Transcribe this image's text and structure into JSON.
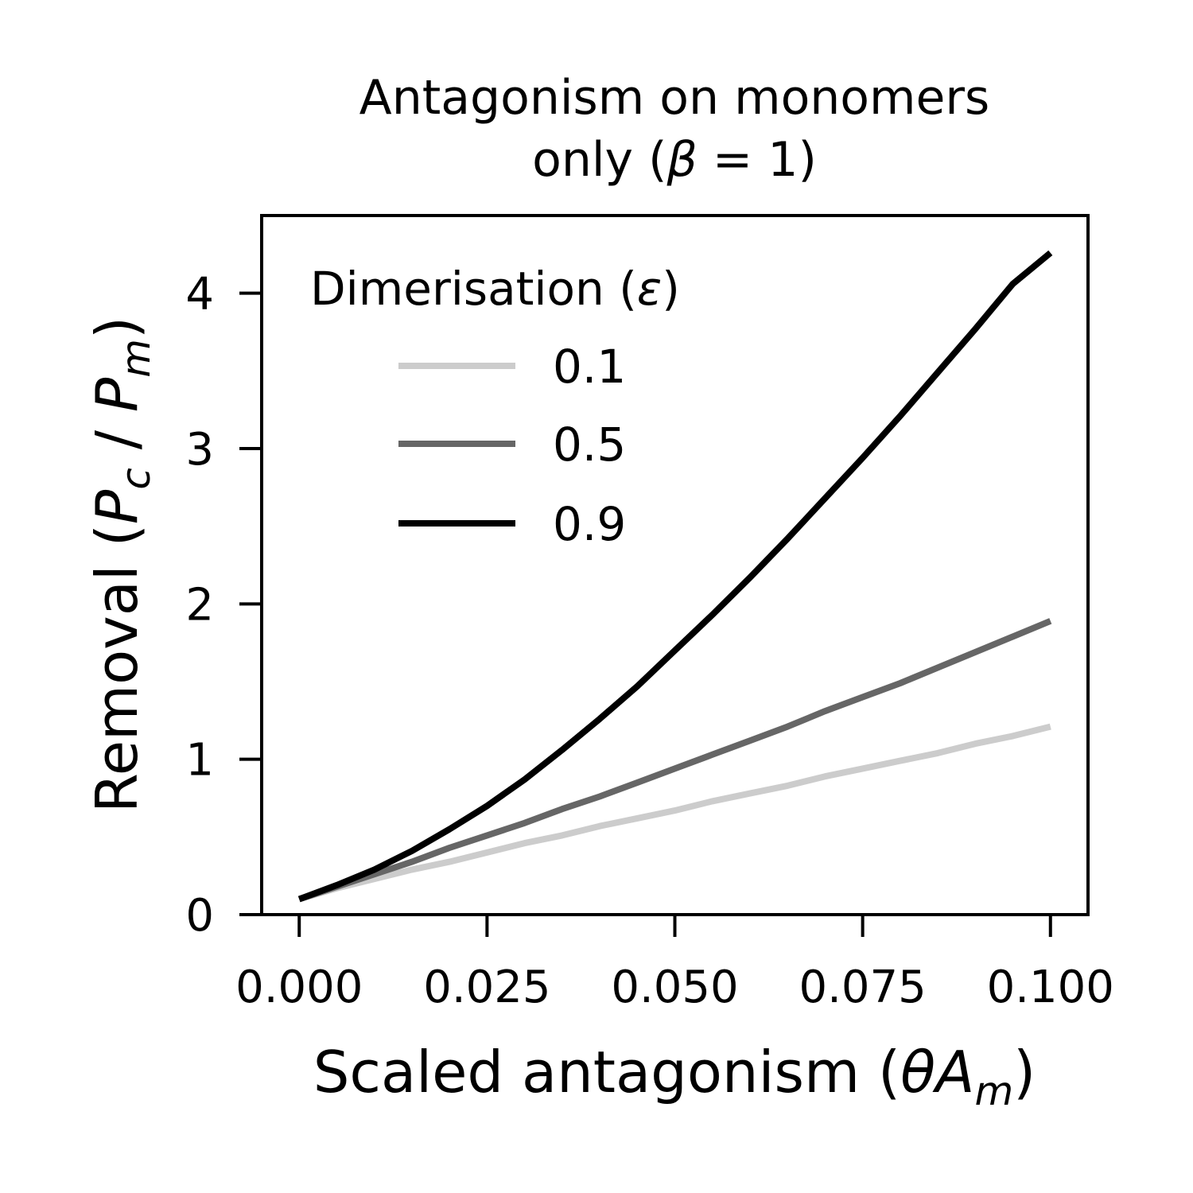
{
  "chart_data": {
    "type": "line",
    "title_line1": "Antagonism on monomers",
    "title_line2_pre": "only (",
    "title_line2_math": "β",
    "title_line2_mid": " = 1",
    "title_line2_post": ")",
    "xlabel_pre": "Scaled antagonism (",
    "xlabel_math": "θA",
    "xlabel_sub": "m",
    "xlabel_post": ")",
    "ylabel_pre": "Removal (",
    "ylabel_p1": "P",
    "ylabel_sub1": "c",
    "ylabel_mid": " / ",
    "ylabel_p2": "P",
    "ylabel_sub2": "m",
    "ylabel_post": ")",
    "xlim": [
      -0.005,
      0.105
    ],
    "ylim": [
      0,
      4.5
    ],
    "xticks": [
      0.0,
      0.025,
      0.05,
      0.075,
      0.1
    ],
    "xtick_labels": [
      "0.000",
      "0.025",
      "0.050",
      "0.075",
      "0.100"
    ],
    "yticks": [
      0,
      1,
      2,
      3,
      4
    ],
    "ytick_labels": [
      "0",
      "1",
      "2",
      "3",
      "4"
    ],
    "grid": false,
    "legend": {
      "placement": "top-left",
      "title_pre": "Dimerisation (",
      "title_math": "ε",
      "title_post": ")"
    },
    "x": [
      0.0,
      0.005,
      0.01,
      0.015,
      0.02,
      0.025,
      0.03,
      0.035,
      0.04,
      0.045,
      0.05,
      0.055,
      0.06,
      0.065,
      0.07,
      0.075,
      0.08,
      0.085,
      0.09,
      0.095,
      0.1
    ],
    "series": [
      {
        "name": "0.1",
        "color": "#cccccc",
        "values": [
          0.1,
          0.17,
          0.23,
          0.29,
          0.34,
          0.4,
          0.46,
          0.51,
          0.57,
          0.62,
          0.67,
          0.73,
          0.78,
          0.83,
          0.89,
          0.94,
          0.99,
          1.04,
          1.1,
          1.15,
          1.21
        ]
      },
      {
        "name": "0.5",
        "color": "#666666",
        "values": [
          0.1,
          0.18,
          0.26,
          0.34,
          0.43,
          0.51,
          0.59,
          0.68,
          0.76,
          0.85,
          0.94,
          1.03,
          1.12,
          1.21,
          1.31,
          1.4,
          1.49,
          1.59,
          1.69,
          1.79,
          1.89
        ]
      },
      {
        "name": "0.9",
        "color": "#000000",
        "values": [
          0.1,
          0.19,
          0.29,
          0.41,
          0.55,
          0.7,
          0.87,
          1.06,
          1.26,
          1.47,
          1.7,
          1.93,
          2.17,
          2.42,
          2.68,
          2.94,
          3.21,
          3.49,
          3.77,
          4.06,
          4.26
        ]
      }
    ]
  }
}
